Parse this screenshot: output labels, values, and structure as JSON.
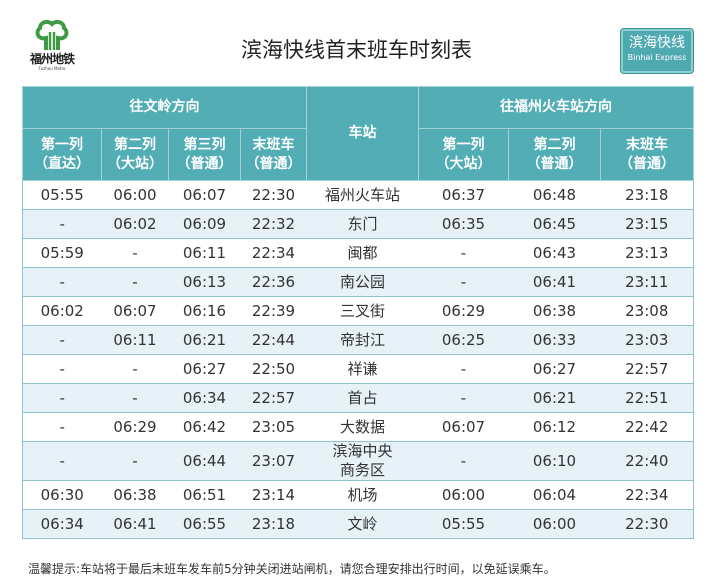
{
  "logo": {
    "cn": "福州地铁",
    "en": "Fuzhou Metro",
    "color": "#3f9a45"
  },
  "title": "滨海快线首末班车时刻表",
  "badge": {
    "cn": "滨海快线",
    "en": "Binhai Express"
  },
  "header": {
    "dir_left": "往文岭方向",
    "station": "车站",
    "dir_right": "往福州火车站方向",
    "left_cols": [
      [
        "第一列",
        "（直达）"
      ],
      [
        "第二列",
        "（大站）"
      ],
      [
        "第三列",
        "（普通）"
      ],
      [
        "末班车",
        "（普通）"
      ]
    ],
    "right_cols": [
      [
        "第一列",
        "（大站）"
      ],
      [
        "第二列",
        "（普通）"
      ],
      [
        "末班车",
        "（普通）"
      ]
    ]
  },
  "rows": [
    {
      "l": [
        "05:55",
        "06:00",
        "06:07",
        "22:30"
      ],
      "station": "福州火车站",
      "r": [
        "06:37",
        "06:48",
        "23:18"
      ]
    },
    {
      "l": [
        "-",
        "06:02",
        "06:09",
        "22:32"
      ],
      "station": "东门",
      "r": [
        "06:35",
        "06:45",
        "23:15"
      ]
    },
    {
      "l": [
        "05:59",
        "-",
        "06:11",
        "22:34"
      ],
      "station": "闽都",
      "r": [
        "-",
        "06:43",
        "23:13"
      ]
    },
    {
      "l": [
        "-",
        "-",
        "06:13",
        "22:36"
      ],
      "station": "南公园",
      "r": [
        "-",
        "06:41",
        "23:11"
      ]
    },
    {
      "l": [
        "06:02",
        "06:07",
        "06:16",
        "22:39"
      ],
      "station": "三叉街",
      "r": [
        "06:29",
        "06:38",
        "23:08"
      ]
    },
    {
      "l": [
        "-",
        "06:11",
        "06:21",
        "22:44"
      ],
      "station": "帝封江",
      "r": [
        "06:25",
        "06:33",
        "23:03"
      ]
    },
    {
      "l": [
        "-",
        "-",
        "06:27",
        "22:50"
      ],
      "station": "祥谦",
      "r": [
        "-",
        "06:27",
        "22:57"
      ]
    },
    {
      "l": [
        "-",
        "-",
        "06:34",
        "22:57"
      ],
      "station": "首占",
      "r": [
        "-",
        "06:21",
        "22:51"
      ]
    },
    {
      "l": [
        "-",
        "06:29",
        "06:42",
        "23:05"
      ],
      "station": "大数据",
      "r": [
        "06:07",
        "06:12",
        "22:42"
      ]
    },
    {
      "l": [
        "-",
        "-",
        "06:44",
        "23:07"
      ],
      "station": "滨海中央\n商务区",
      "r": [
        "-",
        "06:10",
        "22:40"
      ]
    },
    {
      "l": [
        "06:30",
        "06:38",
        "06:51",
        "23:14"
      ],
      "station": "机场",
      "r": [
        "06:00",
        "06:04",
        "22:34"
      ]
    },
    {
      "l": [
        "06:34",
        "06:41",
        "06:55",
        "23:18"
      ],
      "station": "文岭",
      "r": [
        "05:55",
        "06:00",
        "22:30"
      ]
    }
  ],
  "note": "温馨提示:车站将于最后末班车发车前5分钟关闭进站闸机，请您合理安排出行时间，以免延误乘车。",
  "colors": {
    "header": "#52adb5",
    "alt_row": "#e6f1f8"
  }
}
